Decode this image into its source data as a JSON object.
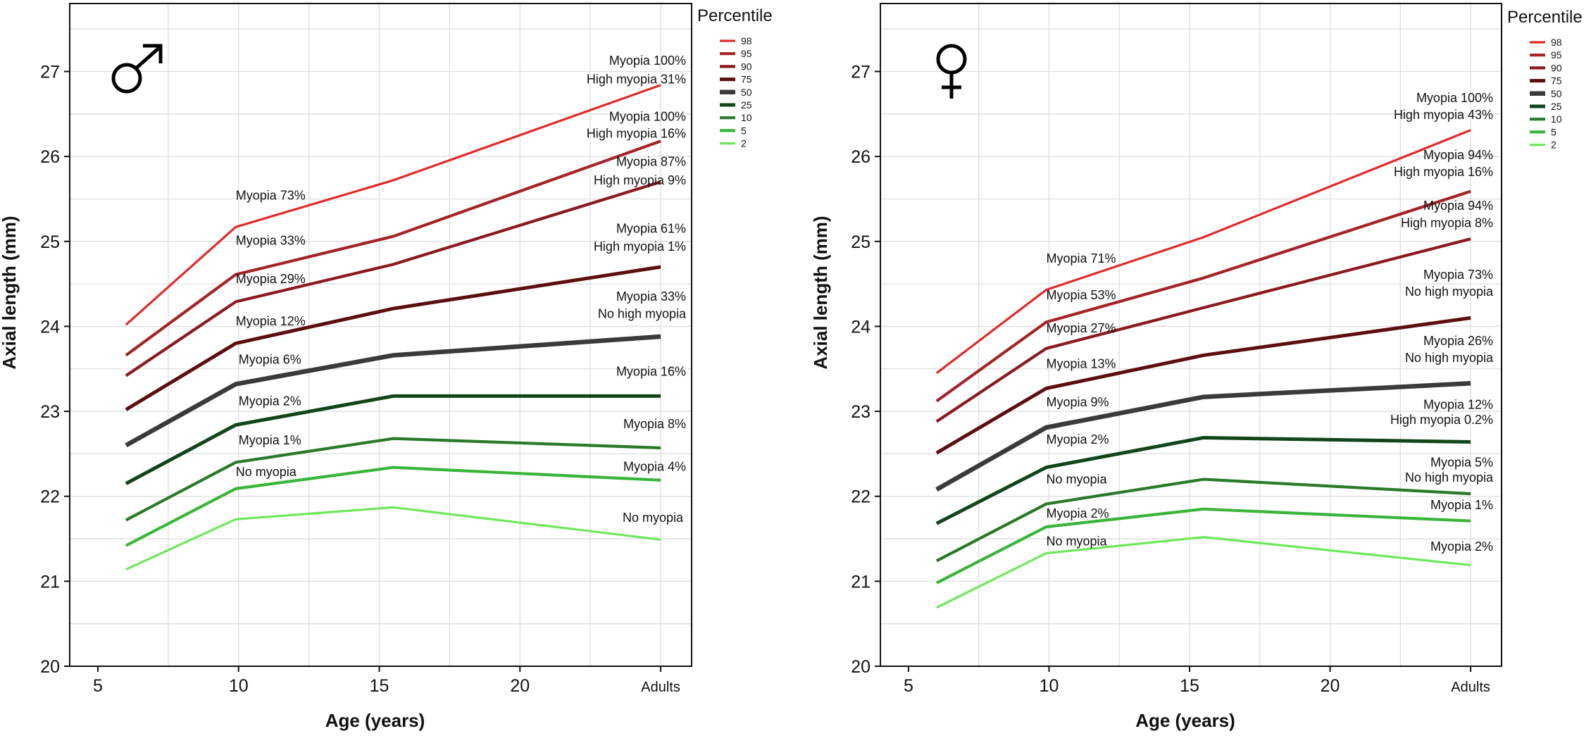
{
  "chart_data": [
    {
      "type": "line",
      "panel": "male",
      "symbol_icon": "male-symbol-icon",
      "xlabel": "Age (years)",
      "ylabel": "Axial length (mm)",
      "x_ticks": [
        "5",
        "10",
        "15",
        "20",
        "Adults"
      ],
      "x_tick_values": [
        5,
        10,
        15,
        20,
        25
      ],
      "y_ticks": [
        "20",
        "21",
        "22",
        "23",
        "24",
        "25",
        "26",
        "27"
      ],
      "xlim": [
        4,
        26.1
      ],
      "ylim": [
        20,
        27.8
      ],
      "grid": true,
      "legend": {
        "title": "Percentile",
        "position": "right"
      },
      "x": [
        6,
        9.9,
        15.5,
        25
      ],
      "series": [
        {
          "name": "98",
          "color": "#e02a2a",
          "width": 3.2,
          "values": [
            24.02,
            25.17,
            25.72,
            26.84
          ]
        },
        {
          "name": "95",
          "color": "#a42426",
          "width": 4.2,
          "values": [
            23.66,
            24.61,
            25.06,
            26.18
          ]
        },
        {
          "name": "90",
          "color": "#8a1a1e",
          "width": 4.2,
          "values": [
            23.42,
            24.29,
            24.73,
            25.7
          ]
        },
        {
          "name": "75",
          "color": "#5c0e10",
          "width": 5,
          "values": [
            23.02,
            23.8,
            24.21,
            24.7
          ]
        },
        {
          "name": "50",
          "color": "#3a3a3c",
          "width": 6.5,
          "values": [
            22.6,
            23.32,
            23.66,
            23.88
          ]
        },
        {
          "name": "25",
          "color": "#11451a",
          "width": 5,
          "values": [
            22.15,
            22.84,
            23.18,
            23.18
          ]
        },
        {
          "name": "10",
          "color": "#2a7a2a",
          "width": 4.2,
          "values": [
            21.72,
            22.4,
            22.68,
            22.57
          ]
        },
        {
          "name": "5",
          "color": "#3ab53a",
          "width": 4.2,
          "values": [
            21.42,
            22.09,
            22.34,
            22.19
          ]
        },
        {
          "name": "2",
          "color": "#6ee85a",
          "width": 3.2,
          "values": [
            21.14,
            21.73,
            21.87,
            21.49
          ]
        }
      ],
      "annotations": [
        {
          "text": "Myopia 100%",
          "x": 25.9,
          "y": 27.08,
          "anchor": "end"
        },
        {
          "text": "High myopia 31%",
          "x": 25.9,
          "y": 26.86,
          "anchor": "end"
        },
        {
          "text": "Myopia 100%",
          "x": 25.9,
          "y": 26.42,
          "anchor": "end"
        },
        {
          "text": "High myopia 16%",
          "x": 25.9,
          "y": 26.22,
          "anchor": "end"
        },
        {
          "text": "Myopia 87%",
          "x": 25.9,
          "y": 25.89,
          "anchor": "end"
        },
        {
          "text": "High myopia 9%",
          "x": 25.9,
          "y": 25.67,
          "anchor": "end"
        },
        {
          "text": "Myopia 61%",
          "x": 25.9,
          "y": 25.1,
          "anchor": "end"
        },
        {
          "text": "High myopia 1%",
          "x": 25.9,
          "y": 24.89,
          "anchor": "end"
        },
        {
          "text": "Myopia 33%",
          "x": 25.9,
          "y": 24.3,
          "anchor": "end"
        },
        {
          "text": "No high myopia",
          "x": 25.9,
          "y": 24.1,
          "anchor": "end"
        },
        {
          "text": "Myopia 16%",
          "x": 25.9,
          "y": 23.42,
          "anchor": "end"
        },
        {
          "text": "Myopia 8%",
          "x": 25.9,
          "y": 22.8,
          "anchor": "end"
        },
        {
          "text": "Myopia 4%",
          "x": 25.9,
          "y": 22.3,
          "anchor": "end"
        },
        {
          "text": "No myopia",
          "x": 25.8,
          "y": 21.7,
          "anchor": "end"
        },
        {
          "text": "Myopia 73%",
          "x": 9.9,
          "y": 25.49,
          "anchor": "start"
        },
        {
          "text": "Myopia 33%",
          "x": 9.9,
          "y": 24.96,
          "anchor": "start"
        },
        {
          "text": "Myopia 29%",
          "x": 9.9,
          "y": 24.51,
          "anchor": "start"
        },
        {
          "text": "Myopia 12%",
          "x": 9.9,
          "y": 24.01,
          "anchor": "start"
        },
        {
          "text": "Myopia 6%",
          "x": 10,
          "y": 23.56,
          "anchor": "start"
        },
        {
          "text": "Myopia 2%",
          "x": 10,
          "y": 23.07,
          "anchor": "start"
        },
        {
          "text": "Myopia 1%",
          "x": 10,
          "y": 22.61,
          "anchor": "start"
        },
        {
          "text": "No myopia",
          "x": 9.9,
          "y": 22.24,
          "anchor": "start"
        }
      ]
    },
    {
      "type": "line",
      "panel": "female",
      "symbol_icon": "female-symbol-icon",
      "xlabel": "Age (years)",
      "ylabel": "Axial length (mm)",
      "x_ticks": [
        "5",
        "10",
        "15",
        "20",
        "Adults"
      ],
      "x_tick_values": [
        5,
        10,
        15,
        20,
        25
      ],
      "y_ticks": [
        "20",
        "21",
        "22",
        "23",
        "24",
        "25",
        "26",
        "27"
      ],
      "xlim": [
        4,
        26.1
      ],
      "ylim": [
        20,
        27.8
      ],
      "grid": true,
      "legend": {
        "title": "Percentile",
        "position": "right"
      },
      "x": [
        6,
        9.9,
        15.5,
        25
      ],
      "series": [
        {
          "name": "98",
          "color": "#e02a2a",
          "width": 3.2,
          "values": [
            23.45,
            24.43,
            25.05,
            26.31
          ]
        },
        {
          "name": "95",
          "color": "#a42426",
          "width": 4.2,
          "values": [
            23.12,
            24.05,
            24.57,
            25.59
          ]
        },
        {
          "name": "90",
          "color": "#8a1a1e",
          "width": 4.2,
          "values": [
            22.88,
            23.74,
            24.22,
            25.03
          ]
        },
        {
          "name": "75",
          "color": "#5c0e10",
          "width": 5,
          "values": [
            22.51,
            23.27,
            23.66,
            24.1
          ]
        },
        {
          "name": "50",
          "color": "#3a3a3c",
          "width": 6.5,
          "values": [
            22.08,
            22.81,
            23.17,
            23.33
          ]
        },
        {
          "name": "25",
          "color": "#11451a",
          "width": 5,
          "values": [
            21.68,
            22.34,
            22.69,
            22.64
          ]
        },
        {
          "name": "10",
          "color": "#2a7a2a",
          "width": 4.2,
          "values": [
            21.24,
            21.91,
            22.2,
            22.03
          ]
        },
        {
          "name": "5",
          "color": "#3ab53a",
          "width": 4.2,
          "values": [
            20.98,
            21.64,
            21.85,
            21.71
          ]
        },
        {
          "name": "2",
          "color": "#6ee85a",
          "width": 3.2,
          "values": [
            20.69,
            21.33,
            21.52,
            21.19
          ]
        }
      ],
      "annotations": [
        {
          "text": "Myopia 100%",
          "x": 25.8,
          "y": 26.64,
          "anchor": "end"
        },
        {
          "text": "High myopia 43%",
          "x": 25.8,
          "y": 26.44,
          "anchor": "end"
        },
        {
          "text": "Myopia 94%",
          "x": 25.8,
          "y": 25.97,
          "anchor": "end"
        },
        {
          "text": "High myopia 16%",
          "x": 25.8,
          "y": 25.77,
          "anchor": "end"
        },
        {
          "text": "Myopia 94%",
          "x": 25.8,
          "y": 25.37,
          "anchor": "end"
        },
        {
          "text": "High myopia 8%",
          "x": 25.8,
          "y": 25.17,
          "anchor": "end"
        },
        {
          "text": "Myopia 73%",
          "x": 25.8,
          "y": 24.56,
          "anchor": "end"
        },
        {
          "text": "No high myopia",
          "x": 25.8,
          "y": 24.36,
          "anchor": "end"
        },
        {
          "text": "Myopia 26%",
          "x": 25.8,
          "y": 23.78,
          "anchor": "end"
        },
        {
          "text": "No high myopia",
          "x": 25.8,
          "y": 23.58,
          "anchor": "end"
        },
        {
          "text": "Myopia 12%",
          "x": 25.8,
          "y": 23.03,
          "anchor": "end"
        },
        {
          "text": "High myopia 0.2%",
          "x": 25.8,
          "y": 22.85,
          "anchor": "end"
        },
        {
          "text": "Myopia 5%",
          "x": 25.8,
          "y": 22.35,
          "anchor": "end"
        },
        {
          "text": "No high myopia",
          "x": 25.8,
          "y": 22.17,
          "anchor": "end"
        },
        {
          "text": "Myopia 1%",
          "x": 25.8,
          "y": 21.85,
          "anchor": "end"
        },
        {
          "text": "Myopia 2%",
          "x": 25.8,
          "y": 21.36,
          "anchor": "end"
        },
        {
          "text": "Myopia 71%",
          "x": 9.9,
          "y": 24.75,
          "anchor": "start"
        },
        {
          "text": "Myopia 53%",
          "x": 9.9,
          "y": 24.32,
          "anchor": "start"
        },
        {
          "text": "Myopia 27%",
          "x": 9.9,
          "y": 23.93,
          "anchor": "start"
        },
        {
          "text": "Myopia 13%",
          "x": 9.9,
          "y": 23.51,
          "anchor": "start"
        },
        {
          "text": "Myopia 9%",
          "x": 9.9,
          "y": 23.06,
          "anchor": "start"
        },
        {
          "text": "Myopia 2%",
          "x": 9.9,
          "y": 22.62,
          "anchor": "start"
        },
        {
          "text": "No myopia",
          "x": 9.9,
          "y": 22.15,
          "anchor": "start"
        },
        {
          "text": "Myopia 2%",
          "x": 9.9,
          "y": 21.75,
          "anchor": "start"
        },
        {
          "text": "No myopia",
          "x": 9.9,
          "y": 21.42,
          "anchor": "start"
        }
      ]
    }
  ]
}
